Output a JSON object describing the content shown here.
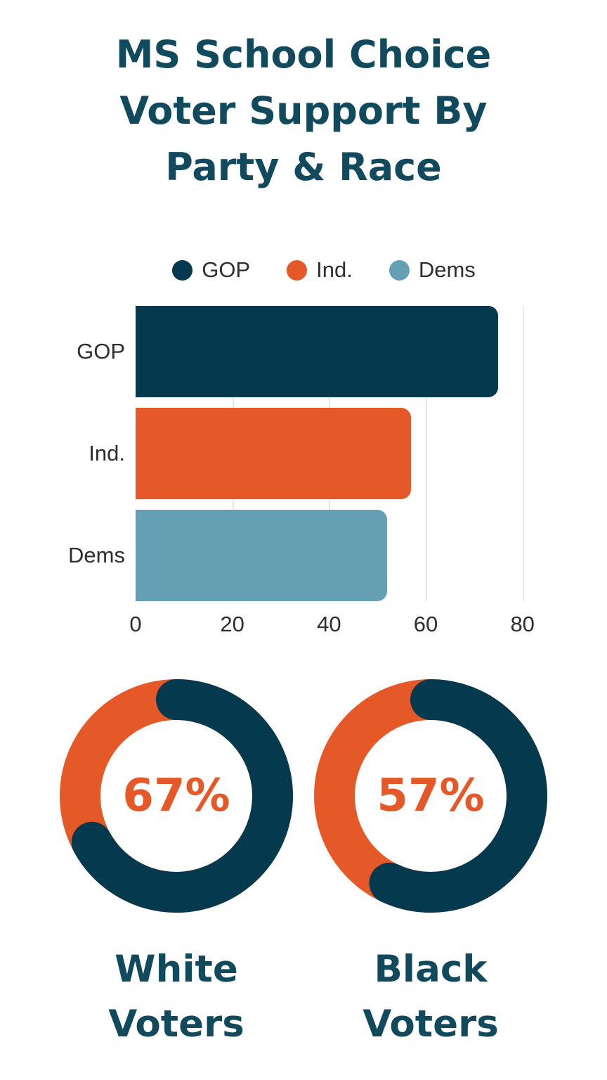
{
  "palette": {
    "teal": "#04394e",
    "teal_text": "#11495d",
    "orange": "#e45927",
    "light_blue": "#649fb3",
    "axis_text": "#2e2e2e",
    "gridline": "#e7e7e7",
    "background": "#ffffff"
  },
  "header": {
    "title": "MS School Choice Voter Support By Party & Race",
    "title_lines": [
      "MS School Choice",
      "Voter Support By",
      "Party & Race"
    ]
  },
  "chart_data": [
    {
      "type": "bar",
      "orientation": "horizontal",
      "title": "",
      "categories": [
        "GOP",
        "Ind.",
        "Dems"
      ],
      "values": [
        75,
        57,
        52
      ],
      "colors": [
        "#04394e",
        "#e45927",
        "#649fb3"
      ],
      "xlabel": "",
      "ylabel": "",
      "xlim": [
        0,
        80
      ],
      "scale_max": 86,
      "xticks": [
        0,
        20,
        40,
        60,
        80
      ],
      "grid": true,
      "legend": {
        "position": "top",
        "items": [
          {
            "label": "GOP",
            "color": "#04394e"
          },
          {
            "label": "Ind.",
            "color": "#e45927"
          },
          {
            "label": "Dems",
            "color": "#649fb3"
          }
        ]
      }
    },
    {
      "type": "donut",
      "items": [
        {
          "label": "White Voters",
          "value_pct": 67,
          "center_label": "67%"
        },
        {
          "label": "Black Voters",
          "value_pct": 57,
          "center_label": "57%"
        }
      ],
      "value_color": "#04394e",
      "remainder_color": "#e45927",
      "center_label_color": "#e45927"
    }
  ]
}
